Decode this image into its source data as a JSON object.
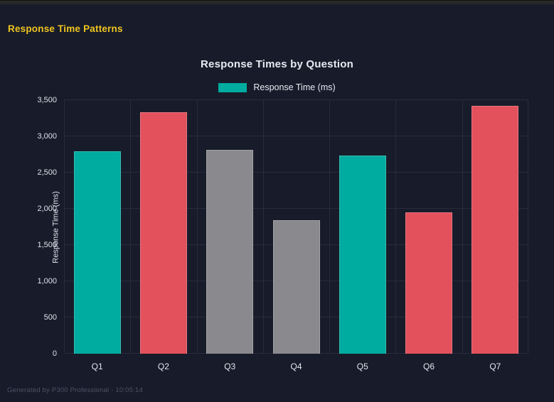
{
  "header": {
    "title": "Response Time Patterns"
  },
  "footer": {
    "text": "Generated by P300 Professional - 10:05:14"
  },
  "chart_data": {
    "type": "bar",
    "title": "Response Times by Question",
    "categories": [
      "Q1",
      "Q2",
      "Q3",
      "Q4",
      "Q5",
      "Q6",
      "Q7"
    ],
    "series": [
      {
        "name": "Response Time (ms)",
        "values": [
          2790,
          3330,
          2810,
          1840,
          2740,
          1950,
          3420
        ]
      }
    ],
    "bar_colors": [
      "#00ab9f",
      "#e2515c",
      "#8a8a8e",
      "#8a8a8e",
      "#00ab9f",
      "#e2515c",
      "#e2515c"
    ],
    "xlabel": "",
    "ylabel": "Response Time (ms)",
    "ylim": [
      0,
      3500
    ],
    "ytick_values": [
      0,
      500,
      1000,
      1500,
      2000,
      2500,
      3000,
      3500
    ],
    "ytick_labels": [
      "0",
      "500",
      "1,000",
      "1,500",
      "2,000",
      "2,500",
      "3,000",
      "3,500"
    ],
    "grid": true,
    "legend": {
      "position": "top",
      "entries": [
        {
          "label": "Response Time (ms)",
          "color": "#00ab9f"
        }
      ]
    }
  },
  "colors": {
    "page_bg": "#181c2a",
    "top_strip": "#282828",
    "accent_yellow": "#f0c420",
    "grid_line": "#272b3c",
    "title_text": "#e7eaf2",
    "tick_text": "#dde1ea",
    "footer_text": "#4c5164"
  }
}
